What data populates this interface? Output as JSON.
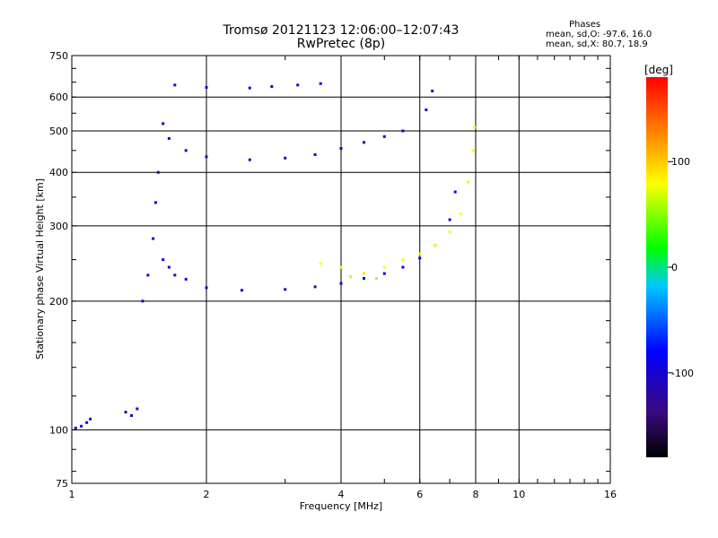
{
  "title": "Tromsø 20121123 12:06:00–12:07:43",
  "subtitle": "RwPretec (8p)",
  "stats": {
    "heading": "Phases",
    "line1": "mean, sd,O: -97.6, 16.0",
    "line2": "mean, sd,X: 80.7, 18.9"
  },
  "chart_data": {
    "type": "scatter",
    "title": "Tromsø 20121123 12:06:00–12:07:43",
    "subtitle": "RwPretec (8p)",
    "xlabel": "Frequency [MHz]",
    "ylabel": "Stationary phase Virtual Height [km]",
    "x_scale": "log",
    "y_scale": "log",
    "xlim": [
      1,
      16
    ],
    "ylim": [
      75,
      750
    ],
    "x_ticks": [
      1,
      2,
      4,
      6,
      8,
      10,
      16
    ],
    "y_ticks": [
      75,
      100,
      200,
      300,
      400,
      500,
      600,
      750
    ],
    "grid": true,
    "colorbar": {
      "label": "[deg]",
      "range": [
        -180,
        180
      ],
      "ticks": [
        100,
        0,
        -100
      ]
    },
    "series": [
      {
        "points": [
          {
            "x": 1.02,
            "y": 101,
            "phase": -100
          },
          {
            "x": 1.05,
            "y": 102,
            "phase": -102
          },
          {
            "x": 1.08,
            "y": 104,
            "phase": -98
          },
          {
            "x": 1.1,
            "y": 106,
            "phase": -95
          },
          {
            "x": 1.32,
            "y": 110,
            "phase": -110
          },
          {
            "x": 1.36,
            "y": 108,
            "phase": -105
          },
          {
            "x": 1.4,
            "y": 112,
            "phase": -100
          },
          {
            "x": 1.44,
            "y": 200,
            "phase": -100
          },
          {
            "x": 1.48,
            "y": 230,
            "phase": -98
          },
          {
            "x": 1.52,
            "y": 280,
            "phase": -102
          },
          {
            "x": 1.54,
            "y": 340,
            "phase": -100
          },
          {
            "x": 1.56,
            "y": 400,
            "phase": -105
          },
          {
            "x": 1.6,
            "y": 250,
            "phase": -100
          },
          {
            "x": 1.65,
            "y": 240,
            "phase": -98
          },
          {
            "x": 1.7,
            "y": 230,
            "phase": -95
          },
          {
            "x": 1.8,
            "y": 225,
            "phase": -100
          },
          {
            "x": 2.0,
            "y": 215,
            "phase": -100
          },
          {
            "x": 2.4,
            "y": 212,
            "phase": -105
          },
          {
            "x": 3.0,
            "y": 213,
            "phase": -110
          },
          {
            "x": 3.5,
            "y": 216,
            "phase": -115
          },
          {
            "x": 4.0,
            "y": 220,
            "phase": -110
          },
          {
            "x": 4.5,
            "y": 226,
            "phase": -100
          },
          {
            "x": 5.0,
            "y": 232,
            "phase": -95
          },
          {
            "x": 5.5,
            "y": 240,
            "phase": -90
          },
          {
            "x": 6.0,
            "y": 252,
            "phase": -95
          },
          {
            "x": 6.5,
            "y": 270,
            "phase": -100
          },
          {
            "x": 7.0,
            "y": 310,
            "phase": -105
          },
          {
            "x": 7.2,
            "y": 360,
            "phase": -100
          },
          {
            "x": 1.6,
            "y": 520,
            "phase": -100
          },
          {
            "x": 1.65,
            "y": 480,
            "phase": -102
          },
          {
            "x": 1.8,
            "y": 450,
            "phase": -100
          },
          {
            "x": 2.0,
            "y": 435,
            "phase": -100
          },
          {
            "x": 2.5,
            "y": 428,
            "phase": -105
          },
          {
            "x": 3.0,
            "y": 432,
            "phase": -110
          },
          {
            "x": 3.5,
            "y": 440,
            "phase": -115
          },
          {
            "x": 4.0,
            "y": 455,
            "phase": -110
          },
          {
            "x": 4.5,
            "y": 470,
            "phase": -105
          },
          {
            "x": 5.0,
            "y": 485,
            "phase": -100
          },
          {
            "x": 5.5,
            "y": 500,
            "phase": -95
          },
          {
            "x": 6.2,
            "y": 560,
            "phase": -100
          },
          {
            "x": 6.4,
            "y": 620,
            "phase": -105
          },
          {
            "x": 1.7,
            "y": 640,
            "phase": -100
          },
          {
            "x": 2.0,
            "y": 632,
            "phase": -100
          },
          {
            "x": 2.5,
            "y": 630,
            "phase": -105
          },
          {
            "x": 2.8,
            "y": 635,
            "phase": -100
          },
          {
            "x": 3.2,
            "y": 640,
            "phase": -100
          },
          {
            "x": 3.6,
            "y": 645,
            "phase": -95
          }
        ]
      },
      {
        "points": [
          {
            "x": 3.6,
            "y": 245,
            "phase": 80
          },
          {
            "x": 4.0,
            "y": 240,
            "phase": 85
          },
          {
            "x": 4.5,
            "y": 232,
            "phase": 90
          },
          {
            "x": 5.0,
            "y": 240,
            "phase": 80
          },
          {
            "x": 5.5,
            "y": 250,
            "phase": 75
          },
          {
            "x": 6.0,
            "y": 258,
            "phase": 85
          },
          {
            "x": 6.5,
            "y": 270,
            "phase": 80
          },
          {
            "x": 7.0,
            "y": 290,
            "phase": 75
          },
          {
            "x": 7.4,
            "y": 320,
            "phase": 80
          },
          {
            "x": 7.7,
            "y": 380,
            "phase": 85
          },
          {
            "x": 7.9,
            "y": 450,
            "phase": 80
          },
          {
            "x": 7.95,
            "y": 510,
            "phase": 75
          },
          {
            "x": 4.2,
            "y": 228,
            "phase": 90
          },
          {
            "x": 4.8,
            "y": 226,
            "phase": 95
          }
        ]
      }
    ]
  }
}
